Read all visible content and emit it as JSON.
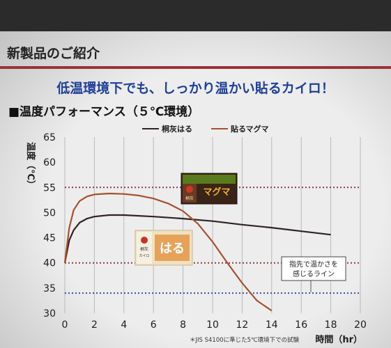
{
  "slide": {
    "title": "新製品のご紹介",
    "headline": "低温環境下でも、しっかり温かい貼るカイロ！",
    "subheading": "■温度パフォーマンス（５℃環境）"
  },
  "colors": {
    "background": "#ededee",
    "title_rule": "#9c3238",
    "headline": "#1f3f97",
    "series_haru": "#2e2420",
    "series_maguma": "#a84f2c",
    "reference_red": "#8a3b3b",
    "reference_blue": "#3a4d93"
  },
  "products": {
    "maguma_pack": {
      "icon": "maguma-product-pack",
      "texts": [
        "マグマ",
        "桐灰"
      ]
    },
    "haru_pack": {
      "icon": "haru-product-pack",
      "texts": [
        "はる",
        "桐灰",
        "カイロ"
      ]
    }
  },
  "chart_data": {
    "type": "line",
    "xlabel": "時間（hr）",
    "ylabel": "温度（℃）",
    "xlim": [
      0,
      20
    ],
    "ylim": [
      30,
      65
    ],
    "x_ticks": [
      "0",
      "2",
      "4",
      "6",
      "8",
      "10",
      "12",
      "14",
      "16",
      "18",
      "20"
    ],
    "y_ticks": [
      "30",
      "35",
      "40",
      "45",
      "50",
      "55",
      "60",
      "65"
    ],
    "vertical_grid": true,
    "legend_position": "top",
    "series": [
      {
        "name": "桐灰はる",
        "color": "#2e2420",
        "x": [
          0,
          0.3,
          0.6,
          1,
          1.5,
          2,
          3,
          4,
          6,
          8,
          10,
          12,
          14,
          16,
          18
        ],
        "y": [
          40,
          44.5,
          46.5,
          48,
          48.8,
          49.2,
          49.5,
          49.5,
          49.2,
          48.8,
          48.3,
          47.6,
          47,
          46.3,
          45.6
        ]
      },
      {
        "name": "貼るマグマ",
        "color": "#a84f2c",
        "x": [
          0,
          0.3,
          0.6,
          1,
          1.5,
          2,
          3,
          4,
          5,
          6,
          7,
          8,
          9,
          10,
          11,
          12,
          13,
          14
        ],
        "y": [
          40,
          47,
          50.5,
          52.3,
          53.2,
          53.6,
          53.8,
          53.7,
          53.4,
          52.8,
          51.8,
          50.3,
          47.8,
          44.2,
          40,
          36,
          32.5,
          30.5
        ]
      }
    ],
    "reference_lines": [
      {
        "y": 55,
        "color": "#8a3b3b"
      },
      {
        "y": 40,
        "color": "#8a3b3b"
      },
      {
        "y": 34,
        "color": "#3a4d93"
      }
    ],
    "annotation": "指先で温かさを感じるライン",
    "footnote": "＊JIS S4100に準じた5℃環境下での試験"
  }
}
